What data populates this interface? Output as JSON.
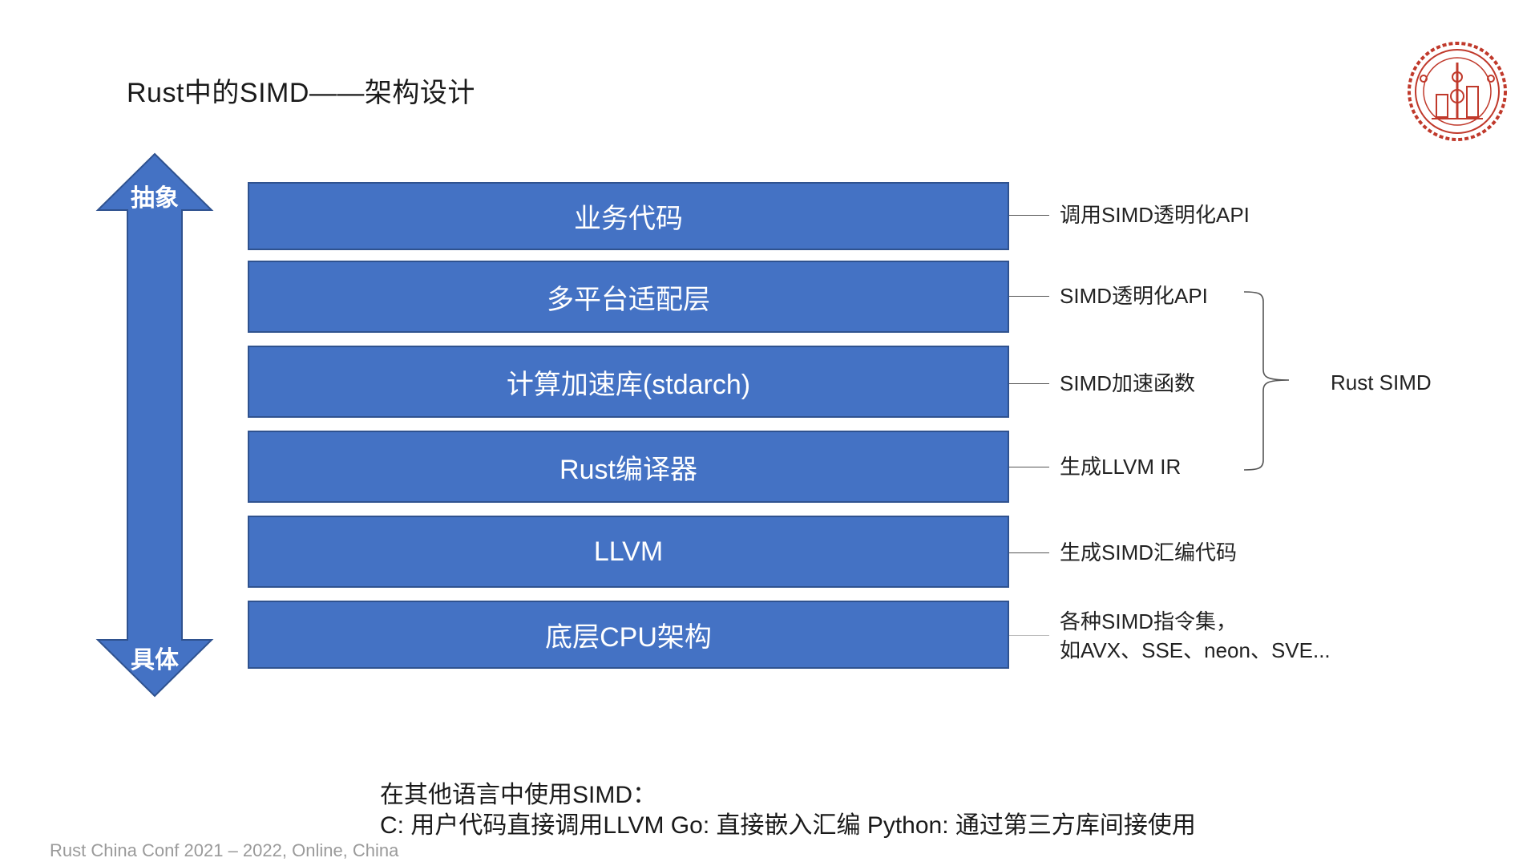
{
  "slide": {
    "title": "Rust中的SIMD——架构设计",
    "footer": "Rust China Conf 2021 – 2022, Online, China"
  },
  "arrow": {
    "top_label": "抽象",
    "bottom_label": "具体",
    "color": "#4472c4"
  },
  "layers": [
    {
      "label": "业务代码",
      "desc": [
        "调用SIMD透明化API"
      ]
    },
    {
      "label": "多平台适配层",
      "desc": [
        "SIMD透明化API"
      ]
    },
    {
      "label": "计算加速库(stdarch)",
      "desc": [
        "SIMD加速函数"
      ]
    },
    {
      "label": "Rust编译器",
      "desc": [
        "生成LLVM IR"
      ]
    },
    {
      "label": "LLVM",
      "desc": [
        "生成SIMD汇编代码"
      ]
    },
    {
      "label": "底层CPU架构",
      "desc": [
        "各种SIMD指令集，",
        "如AVX、SSE、neon、SVE..."
      ]
    }
  ],
  "group": {
    "label": "Rust SIMD"
  },
  "notes": {
    "line1": "在其他语言中使用SIMD：",
    "line2": "C: 用户代码直接调用LLVM  Go: 直接嵌入汇编 Python: 通过第三方库间接使用"
  },
  "colors": {
    "layer_fill": "#4472c4",
    "layer_border": "#2f528f",
    "logo": "#c0392b"
  },
  "logo_icon": "university-seal-icon"
}
